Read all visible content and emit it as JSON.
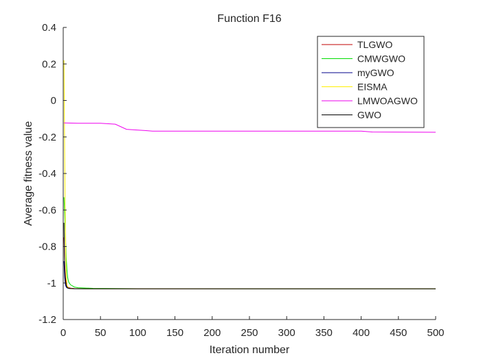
{
  "chart_data": {
    "type": "line",
    "title": "Function F16",
    "xlabel": "Iteration number",
    "ylabel": "Average fitness value",
    "xlim": [
      0,
      500
    ],
    "ylim": [
      -1.2,
      0.4
    ],
    "xticks": [
      0,
      50,
      100,
      150,
      200,
      250,
      300,
      350,
      400,
      450,
      500
    ],
    "yticks": [
      -1.2,
      -1,
      -0.8,
      -0.6,
      -0.4,
      -0.2,
      0,
      0.2,
      0.4
    ],
    "xtick_labels": [
      "0",
      "50",
      "100",
      "150",
      "200",
      "250",
      "300",
      "350",
      "400",
      "450",
      "500"
    ],
    "ytick_labels": [
      "-1.2",
      "-1",
      "-0.8",
      "-0.6",
      "-0.4",
      "-0.2",
      "0",
      "0.2",
      "0.4"
    ],
    "grid": false,
    "legend_position": "top-right",
    "series": [
      {
        "name": "TLGWO",
        "color": "#c00000",
        "x": [
          1,
          2,
          3,
          4,
          5,
          6,
          8,
          10,
          15,
          30,
          100,
          500
        ],
        "y": [
          -0.75,
          -0.9,
          -0.97,
          -1.0,
          -1.015,
          -1.022,
          -1.026,
          -1.028,
          -1.03,
          -1.031,
          -1.0316,
          -1.0316
        ]
      },
      {
        "name": "CMWGWO",
        "color": "#00dd00",
        "x": [
          1,
          2,
          3,
          4,
          5,
          6,
          7,
          8,
          10,
          12,
          15,
          20,
          40,
          100,
          500
        ],
        "y": [
          -0.53,
          -0.62,
          -0.75,
          -0.86,
          -0.93,
          -0.97,
          -0.99,
          -1.0,
          -1.01,
          -1.015,
          -1.022,
          -1.026,
          -1.029,
          -1.031,
          -1.0316
        ]
      },
      {
        "name": "myGWO",
        "color": "#00008b",
        "x": [
          1,
          2,
          3,
          4,
          5,
          6,
          8,
          10,
          15,
          30,
          100,
          500
        ],
        "y": [
          -0.88,
          -0.97,
          -1.01,
          -1.022,
          -1.026,
          -1.028,
          -1.03,
          -1.031,
          -1.0314,
          -1.0316,
          -1.0316,
          -1.0316
        ]
      },
      {
        "name": "EISMA",
        "color": "#ffee00",
        "x": [
          1,
          2,
          3,
          4,
          5,
          6,
          8,
          10,
          15,
          30,
          100,
          500
        ],
        "y": [
          0.22,
          -0.3,
          -0.75,
          -0.95,
          -1.01,
          -1.024,
          -1.028,
          -1.03,
          -1.031,
          -1.0316,
          -1.0316,
          -1.0316
        ]
      },
      {
        "name": "LMWOAGWO",
        "color": "#ee00ee",
        "x": [
          1,
          20,
          50,
          70,
          85,
          110,
          120,
          300,
          400,
          415,
          500
        ],
        "y": [
          -0.123,
          -0.125,
          -0.125,
          -0.13,
          -0.158,
          -0.165,
          -0.168,
          -0.168,
          -0.168,
          -0.173,
          -0.174
        ]
      },
      {
        "name": "GWO",
        "color": "#000000",
        "x": [
          1,
          2,
          3,
          4,
          5,
          6,
          8,
          10,
          15,
          30,
          100,
          500
        ],
        "y": [
          -0.67,
          -0.92,
          -0.99,
          -1.012,
          -1.022,
          -1.027,
          -1.029,
          -1.03,
          -1.031,
          -1.0316,
          -1.0316,
          -1.0316
        ]
      }
    ]
  }
}
